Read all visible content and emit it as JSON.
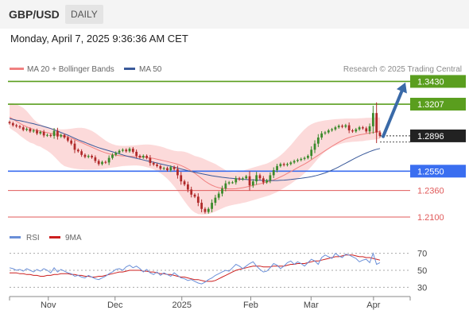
{
  "header": {
    "pair": "GBP/USD",
    "timeframe": "DAILY",
    "timestamp": "Monday, April 7, 2025 9:36:36 AM CET"
  },
  "legend": {
    "ma20": "MA 20 + Bollinger Bands",
    "ma50": "MA 50",
    "rsi": "RSI",
    "rsi_ma": "9MA",
    "credit": "Research © 2025 Trading Central"
  },
  "colors": {
    "ma20": "#f08080",
    "bollinger_fill": "#fcd6d6",
    "ma50": "#3a5a9a",
    "resistance": "#5a9e1e",
    "pivot": "#3a6ef0",
    "support": "#e05a5a",
    "bull_candle": "#3a8a2a",
    "bear_candle": "#b02a2a",
    "arrow": "#3a6aa8",
    "rsi": "#6a8fd8",
    "rsi_ma": "#cc1f1f"
  },
  "chart_data": {
    "type": "candlestick",
    "instrument": "GBP/USD",
    "timeframe": "Daily",
    "ylim": [
      1.203,
      1.348
    ],
    "x_labels": [
      {
        "label": "Nov",
        "date": "2024-11-01"
      },
      {
        "label": "Dec",
        "date": "2024-12-02"
      },
      {
        "label": "2025",
        "date": "2025-01-02"
      },
      {
        "label": "Feb",
        "date": "2025-02-03"
      },
      {
        "label": "Mar",
        "date": "2025-03-03"
      },
      {
        "label": "Apr",
        "date": "2025-04-01"
      }
    ],
    "last_price": 1.2896,
    "levels": [
      {
        "value": 1.343,
        "label": "1.3430",
        "kind": "resistance",
        "style": "box"
      },
      {
        "value": 1.3207,
        "label": "1.3207",
        "kind": "resistance",
        "style": "box"
      },
      {
        "value": 1.255,
        "label": "1.2550",
        "kind": "pivot",
        "style": "box"
      },
      {
        "value": 1.236,
        "label": "1.2360",
        "kind": "support",
        "style": "text"
      },
      {
        "value": 1.21,
        "label": "1.2100",
        "kind": "support",
        "style": "text"
      }
    ],
    "projection": {
      "from": 1.289,
      "to": 1.342
    },
    "closes": [
      1.302,
      1.3,
      1.299,
      1.298,
      1.2955,
      1.2965,
      1.294,
      1.295,
      1.292,
      1.2935,
      1.29,
      1.2905,
      1.2895,
      1.2945,
      1.289,
      1.2905,
      1.288,
      1.285,
      1.282,
      1.276,
      1.2745,
      1.271,
      1.269,
      1.27,
      1.2685,
      1.265,
      1.262,
      1.264,
      1.2635,
      1.268,
      1.271,
      1.273,
      1.275,
      1.276,
      1.2745,
      1.277,
      1.274,
      1.27,
      1.2685,
      1.27,
      1.268,
      1.263,
      1.2615,
      1.26,
      1.2575,
      1.258,
      1.256,
      1.259,
      1.257,
      1.251,
      1.245,
      1.242,
      1.237,
      1.232,
      1.23,
      1.224,
      1.218,
      1.215,
      1.218,
      1.224,
      1.229,
      1.233,
      1.238,
      1.243,
      1.244,
      1.244,
      1.248,
      1.247,
      1.248,
      1.25,
      1.241,
      1.245,
      1.251,
      1.248,
      1.244,
      1.246,
      1.251,
      1.256,
      1.26,
      1.262,
      1.261,
      1.262,
      1.2635,
      1.265,
      1.266,
      1.267,
      1.268,
      1.27,
      1.276,
      1.282,
      1.288,
      1.292,
      1.293,
      1.295,
      1.296,
      1.298,
      1.2995,
      1.2985,
      1.3,
      1.295,
      1.294,
      1.296,
      1.298,
      1.297,
      1.294,
      1.299,
      1.312,
      1.293,
      1.2896
    ],
    "ma20": [
      1.308,
      1.306,
      1.304,
      1.302,
      1.3,
      1.2985,
      1.297,
      1.296,
      1.295,
      1.2942,
      1.2935,
      1.2928,
      1.292,
      1.2914,
      1.2908,
      1.29,
      1.2892,
      1.2885,
      1.2874,
      1.286,
      1.2845,
      1.283,
      1.2815,
      1.28,
      1.2785,
      1.277,
      1.2755,
      1.2742,
      1.273,
      1.272,
      1.2712,
      1.2706,
      1.2702,
      1.27,
      1.2698,
      1.2696,
      1.2694,
      1.2692,
      1.269,
      1.2688,
      1.2684,
      1.268,
      1.2675,
      1.2668,
      1.266,
      1.2652,
      1.2644,
      1.2636,
      1.2628,
      1.2618,
      1.2605,
      1.259,
      1.2572,
      1.2552,
      1.253,
      1.2505,
      1.2478,
      1.2452,
      1.243,
      1.2412,
      1.2398,
      1.2388,
      1.2382,
      1.2378,
      1.2376,
      1.2376,
      1.2378,
      1.2382,
      1.2388,
      1.2395,
      1.2402,
      1.241,
      1.2418,
      1.2426,
      1.2434,
      1.2442,
      1.2452,
      1.2464,
      1.2478,
      1.2494,
      1.251,
      1.2528,
      1.2546,
      1.2565,
      1.2584,
      1.2602,
      1.262,
      1.264,
      1.2662,
      1.2684,
      1.2706,
      1.2728,
      1.275,
      1.2772,
      1.2794,
      1.2814,
      1.2834,
      1.2852,
      1.2868,
      1.288,
      1.289,
      1.2898,
      1.2906,
      1.2912,
      1.2918,
      1.2924,
      1.293,
      1.2934,
      1.2938
    ],
    "bb_upper": [
      1.3215,
      1.3215,
      1.3205,
      1.319,
      1.317,
      1.314,
      1.31,
      1.306,
      1.303,
      1.301,
      1.2995,
      1.2985,
      1.2975,
      1.2968,
      1.2962,
      1.296,
      1.296,
      1.2962,
      1.2966,
      1.2972,
      1.2975,
      1.2975,
      1.297,
      1.296,
      1.2945,
      1.2925,
      1.29,
      1.2875,
      1.285,
      1.283,
      1.2815,
      1.2805,
      1.28,
      1.2798,
      1.2798,
      1.28,
      1.2802,
      1.2805,
      1.2807,
      1.281,
      1.2812,
      1.281,
      1.2806,
      1.28,
      1.2792,
      1.2782,
      1.277,
      1.276,
      1.275,
      1.2745,
      1.2745,
      1.274,
      1.273,
      1.2715,
      1.27,
      1.269,
      1.268,
      1.2665,
      1.265,
      1.2635,
      1.262,
      1.26,
      1.258,
      1.256,
      1.2545,
      1.254,
      1.254,
      1.2545,
      1.2555,
      1.2565,
      1.2575,
      1.2585,
      1.2595,
      1.2605,
      1.2615,
      1.2625,
      1.264,
      1.266,
      1.268,
      1.2705,
      1.2735,
      1.277,
      1.2805,
      1.2845,
      1.2885,
      1.2925,
      1.296,
      1.299,
      1.301,
      1.3025,
      1.3035,
      1.3042,
      1.3048,
      1.3052,
      1.3056,
      1.306,
      1.3062,
      1.3064,
      1.3066,
      1.3066,
      1.3066,
      1.3066,
      1.3068,
      1.307,
      1.3072,
      1.3074,
      1.3075,
      1.3076,
      1.3076
    ],
    "bb_lower": [
      1.2975,
      1.295,
      1.293,
      1.29,
      1.2875,
      1.285,
      1.283,
      1.282,
      1.28,
      1.279,
      1.277,
      1.275,
      1.2725,
      1.2695,
      1.266,
      1.2625,
      1.26,
      1.259,
      1.258,
      1.2575,
      1.257,
      1.2568,
      1.2566,
      1.2565,
      1.2565,
      1.2566,
      1.2568,
      1.257,
      1.2575,
      1.258,
      1.2585,
      1.259,
      1.2595,
      1.26,
      1.2602,
      1.2604,
      1.2606,
      1.2606,
      1.2603,
      1.2598,
      1.259,
      1.258,
      1.2568,
      1.255,
      1.253,
      1.2505,
      1.2475,
      1.244,
      1.24,
      1.2355,
      1.2305,
      1.2255,
      1.221,
      1.217,
      1.2145,
      1.213,
      1.2125,
      1.2125,
      1.213,
      1.214,
      1.2155,
      1.217,
      1.2185,
      1.22,
      1.221,
      1.2218,
      1.2225,
      1.223,
      1.2238,
      1.2245,
      1.2255,
      1.2265,
      1.2275,
      1.2285,
      1.2295,
      1.2305,
      1.2315,
      1.233,
      1.2345,
      1.2365,
      1.2385,
      1.2405,
      1.2425,
      1.245,
      1.2475,
      1.25,
      1.253,
      1.256,
      1.2595,
      1.2635,
      1.2675,
      1.271,
      1.274,
      1.2765,
      1.2785,
      1.28,
      1.2812,
      1.2822,
      1.283,
      1.2834,
      1.2838,
      1.284,
      1.2842,
      1.2845,
      1.285,
      1.2854,
      1.2858,
      1.2862,
      1.2866
    ],
    "ma50": [
      1.3065,
      1.3058,
      1.305,
      1.3045,
      1.3038,
      1.303,
      1.3022,
      1.3015,
      1.3005,
      1.2998,
      1.2988,
      1.2978,
      1.2968,
      1.2955,
      1.2943,
      1.293,
      1.2916,
      1.2903,
      1.2888,
      1.2873,
      1.2858,
      1.2845,
      1.2832,
      1.2818,
      1.2805,
      1.2792,
      1.278,
      1.277,
      1.276,
      1.275,
      1.274,
      1.273,
      1.272,
      1.271,
      1.27,
      1.2692,
      1.2684,
      1.2676,
      1.2668,
      1.266,
      1.2652,
      1.2645,
      1.2637,
      1.263,
      1.2622,
      1.2614,
      1.2606,
      1.2598,
      1.259,
      1.258,
      1.2572,
      1.2563,
      1.2555,
      1.2547,
      1.254,
      1.2532,
      1.2525,
      1.2518,
      1.2512,
      1.2505,
      1.25,
      1.2495,
      1.249,
      1.2486,
      1.2482,
      1.2479,
      1.2476,
      1.2473,
      1.247,
      1.2468,
      1.2466,
      1.2464,
      1.2462,
      1.246,
      1.2459,
      1.2458,
      1.2458,
      1.2458,
      1.2458,
      1.246,
      1.2462,
      1.2465,
      1.2468,
      1.2472,
      1.2476,
      1.248,
      1.2485,
      1.249,
      1.2496,
      1.2503,
      1.2512,
      1.2522,
      1.2533,
      1.2546,
      1.256,
      1.2575,
      1.2592,
      1.261,
      1.2628,
      1.2646,
      1.2664,
      1.2682,
      1.2698,
      1.2714,
      1.2728,
      1.2742,
      1.2754,
      1.2764,
      1.2772
    ],
    "rsi": {
      "ylim": [
        20,
        80
      ],
      "ticks": [
        30,
        50,
        70
      ],
      "values": [
        53,
        52,
        50,
        51,
        49,
        52,
        50,
        48,
        51,
        49,
        52,
        50,
        47,
        53,
        48,
        51,
        49,
        47,
        46,
        43,
        44,
        42,
        41,
        44,
        42,
        40,
        39,
        41,
        43,
        46,
        48,
        51,
        52,
        50,
        54,
        56,
        53,
        55,
        52,
        48,
        51,
        47,
        45,
        48,
        44,
        47,
        45,
        43,
        47,
        44,
        41,
        40,
        38,
        39,
        37,
        35,
        34,
        36,
        39,
        41,
        44,
        46,
        48,
        50,
        49,
        53,
        57,
        55,
        52,
        55,
        58,
        60,
        55,
        51,
        48,
        49,
        53,
        58,
        56,
        52,
        55,
        59,
        61,
        57,
        60,
        58,
        55,
        59,
        63,
        61,
        57,
        65,
        68,
        66,
        64,
        70,
        67,
        65,
        69,
        68,
        66,
        64,
        60,
        62,
        63,
        59,
        70,
        57,
        59
      ],
      "ma": [
        47,
        47,
        47,
        46,
        46,
        45,
        45,
        44,
        44,
        43,
        43,
        44,
        44,
        45,
        45,
        46,
        46,
        46,
        45,
        45,
        44,
        44,
        43,
        43,
        42,
        42,
        43,
        43,
        44,
        45,
        46,
        47,
        48,
        48,
        49,
        50,
        50,
        50,
        50,
        49,
        49,
        48,
        48,
        47,
        46,
        46,
        45,
        45,
        44,
        43,
        42,
        42,
        41,
        40,
        39,
        39,
        38,
        37,
        37,
        37,
        38,
        40,
        42,
        44,
        46,
        48,
        50,
        51,
        52,
        53,
        54,
        55,
        55,
        55,
        54,
        54,
        54,
        55,
        55,
        55,
        55,
        56,
        57,
        57,
        58,
        58,
        58,
        59,
        60,
        61,
        61,
        62,
        63,
        64,
        65,
        66,
        66,
        67,
        68,
        68,
        68,
        67,
        66,
        66,
        65,
        65,
        64,
        63,
        62
      ]
    }
  }
}
